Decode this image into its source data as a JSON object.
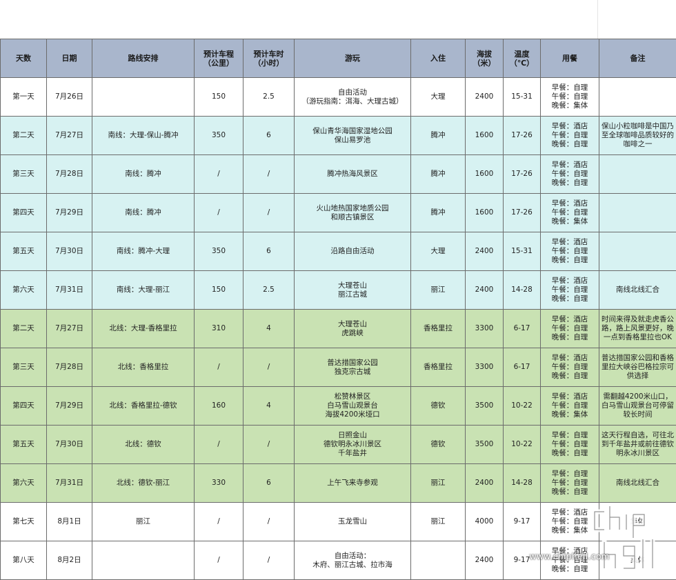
{
  "headers": {
    "day": "天数",
    "date": "日期",
    "route": "路线安排",
    "distance": "预计车程\n（公里）",
    "hours": "预计车时\n（小时）",
    "activity": "游玩",
    "stay": "入住",
    "altitude": "海拔\n（米）",
    "temp": "温度\n（℃）",
    "meals": "用餐",
    "note": "备注"
  },
  "rows": [
    {
      "day": "第一天",
      "date": "7月26日",
      "route": "",
      "distance": "150",
      "hours": "2.5",
      "activity": "自由活动\n（游玩指南：洱海、大理古城）",
      "stay": "大理",
      "altitude": "2400",
      "temp": "15-31",
      "meals": [
        "早餐：自理",
        "午餐：自理",
        "晚餐：集体"
      ],
      "note": ""
    },
    {
      "day": "第二天",
      "date": "7月27日",
      "route": "南线：大理-保山-腾冲",
      "distance": "350",
      "hours": "6",
      "activity": "保山青华海国家湿地公园\n保山易罗池",
      "stay": "腾冲",
      "altitude": "1600",
      "temp": "17-26",
      "meals": [
        "早餐：酒店",
        "午餐：自理",
        "晚餐：自理"
      ],
      "note": "保山小粒咖啡是中国乃至全球咖啡品质较好的咖啡之一"
    },
    {
      "day": "第三天",
      "date": "7月28日",
      "route": "南线：腾冲",
      "distance": "/",
      "hours": "/",
      "activity": "腾冲热海风景区",
      "stay": "腾冲",
      "altitude": "1600",
      "temp": "17-26",
      "meals": [
        "早餐：酒店",
        "午餐：自理",
        "晚餐：自理"
      ],
      "note": ""
    },
    {
      "day": "第四天",
      "date": "7月29日",
      "route": "南线：腾冲",
      "distance": "/",
      "hours": "/",
      "activity": "火山地热国家地质公园\n和顺古镇景区",
      "stay": "腾冲",
      "altitude": "1600",
      "temp": "17-26",
      "meals": [
        "早餐：酒店",
        "午餐：自理",
        "晚餐：集体"
      ],
      "note": ""
    },
    {
      "day": "第五天",
      "date": "7月30日",
      "route": "南线：腾冲-大理",
      "distance": "350",
      "hours": "6",
      "activity": "沿路自由活动",
      "stay": "大理",
      "altitude": "2400",
      "temp": "15-31",
      "meals": [
        "早餐：酒店",
        "午餐：自理",
        "晚餐：自理"
      ],
      "note": ""
    },
    {
      "day": "第六天",
      "date": "7月31日",
      "route": "南线：大理-丽江",
      "distance": "150",
      "hours": "2.5",
      "activity": "大理苍山\n丽江古城",
      "stay": "丽江",
      "altitude": "2400",
      "temp": "14-28",
      "meals": [
        "早餐：酒店",
        "午餐：自理",
        "晚餐：自理"
      ],
      "note": "南线北线汇合"
    },
    {
      "day": "第二天",
      "date": "7月27日",
      "route": "北线：大理-香格里拉",
      "distance": "310",
      "hours": "4",
      "activity": "大理苍山\n虎跳峡",
      "stay": "香格里拉",
      "altitude": "3300",
      "temp": "6-17",
      "meals": [
        "早餐：酒店",
        "午餐：自理",
        "晚餐：自理"
      ],
      "note": "时间来得及就走虎香公路，路上风景更好，晚一点到香格里拉也OK"
    },
    {
      "day": "第三天",
      "date": "7月28日",
      "route": "北线：香格里拉",
      "distance": "/",
      "hours": "/",
      "activity": "普达措国家公园\n独克宗古城",
      "stay": "香格里拉",
      "altitude": "3300",
      "temp": "6-17",
      "meals": [
        "早餐：酒店",
        "午餐：自理",
        "晚餐：自理"
      ],
      "note": "普达措国家公园和香格里拉大峡谷巴格拉宗可供选择"
    },
    {
      "day": "第四天",
      "date": "7月29日",
      "route": "北线：香格里拉-德钦",
      "distance": "160",
      "hours": "4",
      "activity": "松赞林景区\n白马雪山观景台\n海拔4200米垭口",
      "stay": "德钦",
      "altitude": "3500",
      "temp": "10-22",
      "meals": [
        "早餐：酒店",
        "午餐：自理",
        "晚餐：集体"
      ],
      "note": "需翻越4200米山口，白马雪山观景台可停留较长时间"
    },
    {
      "day": "第五天",
      "date": "7月30日",
      "route": "北线：德钦",
      "distance": "/",
      "hours": "/",
      "activity": "日照金山\n德钦明永冰川景区\n千年盐井",
      "stay": "德钦",
      "altitude": "3500",
      "temp": "10-22",
      "meals": [
        "早餐：自理",
        "午餐：自理",
        "晚餐：自理"
      ],
      "note": "这天行程自选，可往北到千年盐井或前往德钦明永冰川景区"
    },
    {
      "day": "第六天",
      "date": "7月31日",
      "route": "北线：德钦-丽江",
      "distance": "330",
      "hours": "6",
      "activity": "上午飞来寺参观",
      "stay": "丽江",
      "altitude": "2400",
      "temp": "14-28",
      "meals": [
        "早餐：自理",
        "午餐：自理",
        "晚餐：自理"
      ],
      "note": "南线北线汇合"
    },
    {
      "day": "第七天",
      "date": "8月1日",
      "route": "丽江",
      "distance": "/",
      "hours": "/",
      "activity": "玉龙雪山",
      "stay": "丽江",
      "altitude": "4000",
      "temp": "9-17",
      "meals": [
        "早餐：酒店",
        "午餐：自理",
        "晚餐：集体"
      ],
      "note": "集体"
    },
    {
      "day": "第八天",
      "date": "8月2日",
      "route": "",
      "distance": "/",
      "hours": "/",
      "activity": "自由活动：\n木府、丽江古城、拉市海",
      "stay": "",
      "altitude": "2400",
      "temp": "9-17",
      "meals": [
        "早餐：酒店",
        "午餐：自理",
        "晚餐：自理"
      ],
      "note": "集体"
    }
  ],
  "row_styles": [
    "w",
    "c",
    "c",
    "c",
    "c",
    "c",
    "g",
    "g",
    "g",
    "g",
    "g",
    "w",
    "w"
  ],
  "center_note_rows": [
    5,
    10,
    11,
    12
  ],
  "watermark": {
    "site": "www.chiphell.com",
    "logo": "chip hell"
  },
  "colors": {
    "header_bg": "#a9b6cc",
    "south_bg": "#d7f2f2",
    "north_bg": "#c9e2b3",
    "plain_bg": "#ffffff",
    "grid": "#6b6b6b"
  }
}
